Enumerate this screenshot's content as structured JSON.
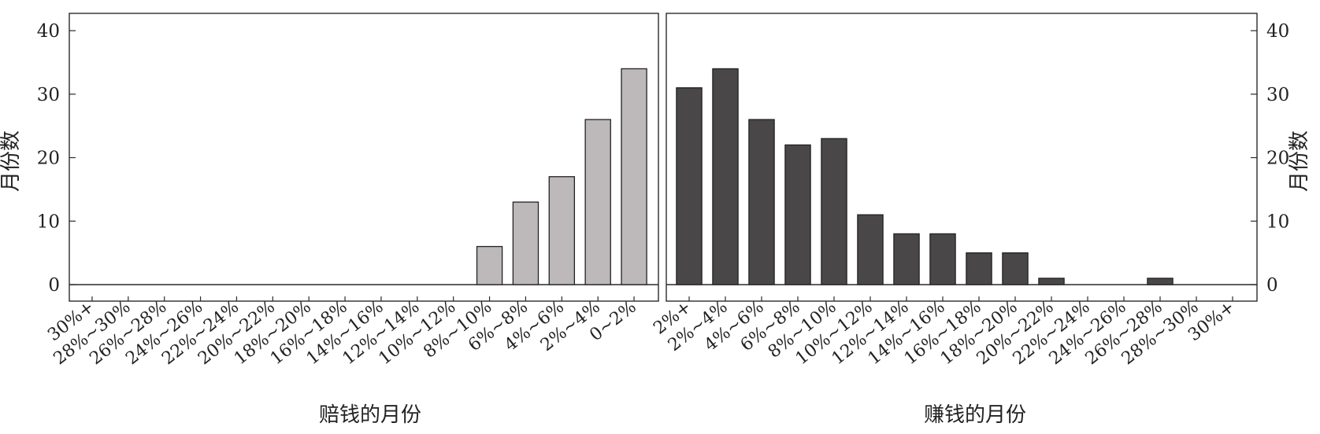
{
  "chart_data": [
    {
      "type": "bar",
      "xlabel": "赔钱的月份",
      "ylabel": "月份数",
      "ylim": [
        0,
        43
      ],
      "yticks": [
        0,
        10,
        20,
        30,
        40
      ],
      "ytick_side": "left",
      "color": "#bdb9ba",
      "categories": [
        "30%+",
        "28%~30%",
        "26%~28%",
        "24%~26%",
        "22%~24%",
        "20%~22%",
        "18%~20%",
        "16%~18%",
        "14%~16%",
        "12%~14%",
        "10%~12%",
        "8%~10%",
        "6%~8%",
        "4%~6%",
        "2%~4%",
        "0~2%"
      ],
      "values": [
        0,
        0,
        0,
        0,
        0,
        0,
        0,
        0,
        0,
        0,
        0,
        6,
        13,
        17,
        26,
        34
      ],
      "grid": false
    },
    {
      "type": "bar",
      "xlabel": "赚钱的月份",
      "ylabel": "月份数",
      "ylim": [
        0,
        43
      ],
      "yticks": [
        0,
        10,
        20,
        30,
        40
      ],
      "ytick_side": "right",
      "color": "#4a4749",
      "categories": [
        "2%+",
        "2%~4%",
        "4%~6%",
        "6%~8%",
        "8%~10%",
        "10%~12%",
        "12%~14%",
        "14%~16%",
        "16%~18%",
        "18%~20%",
        "20%~22%",
        "22%~24%",
        "24%~26%",
        "26%~28%",
        "28%~30%",
        "30%+"
      ],
      "values": [
        31,
        34,
        26,
        22,
        23,
        11,
        8,
        8,
        5,
        5,
        1,
        0,
        0,
        1,
        0,
        0
      ],
      "grid": false
    }
  ]
}
